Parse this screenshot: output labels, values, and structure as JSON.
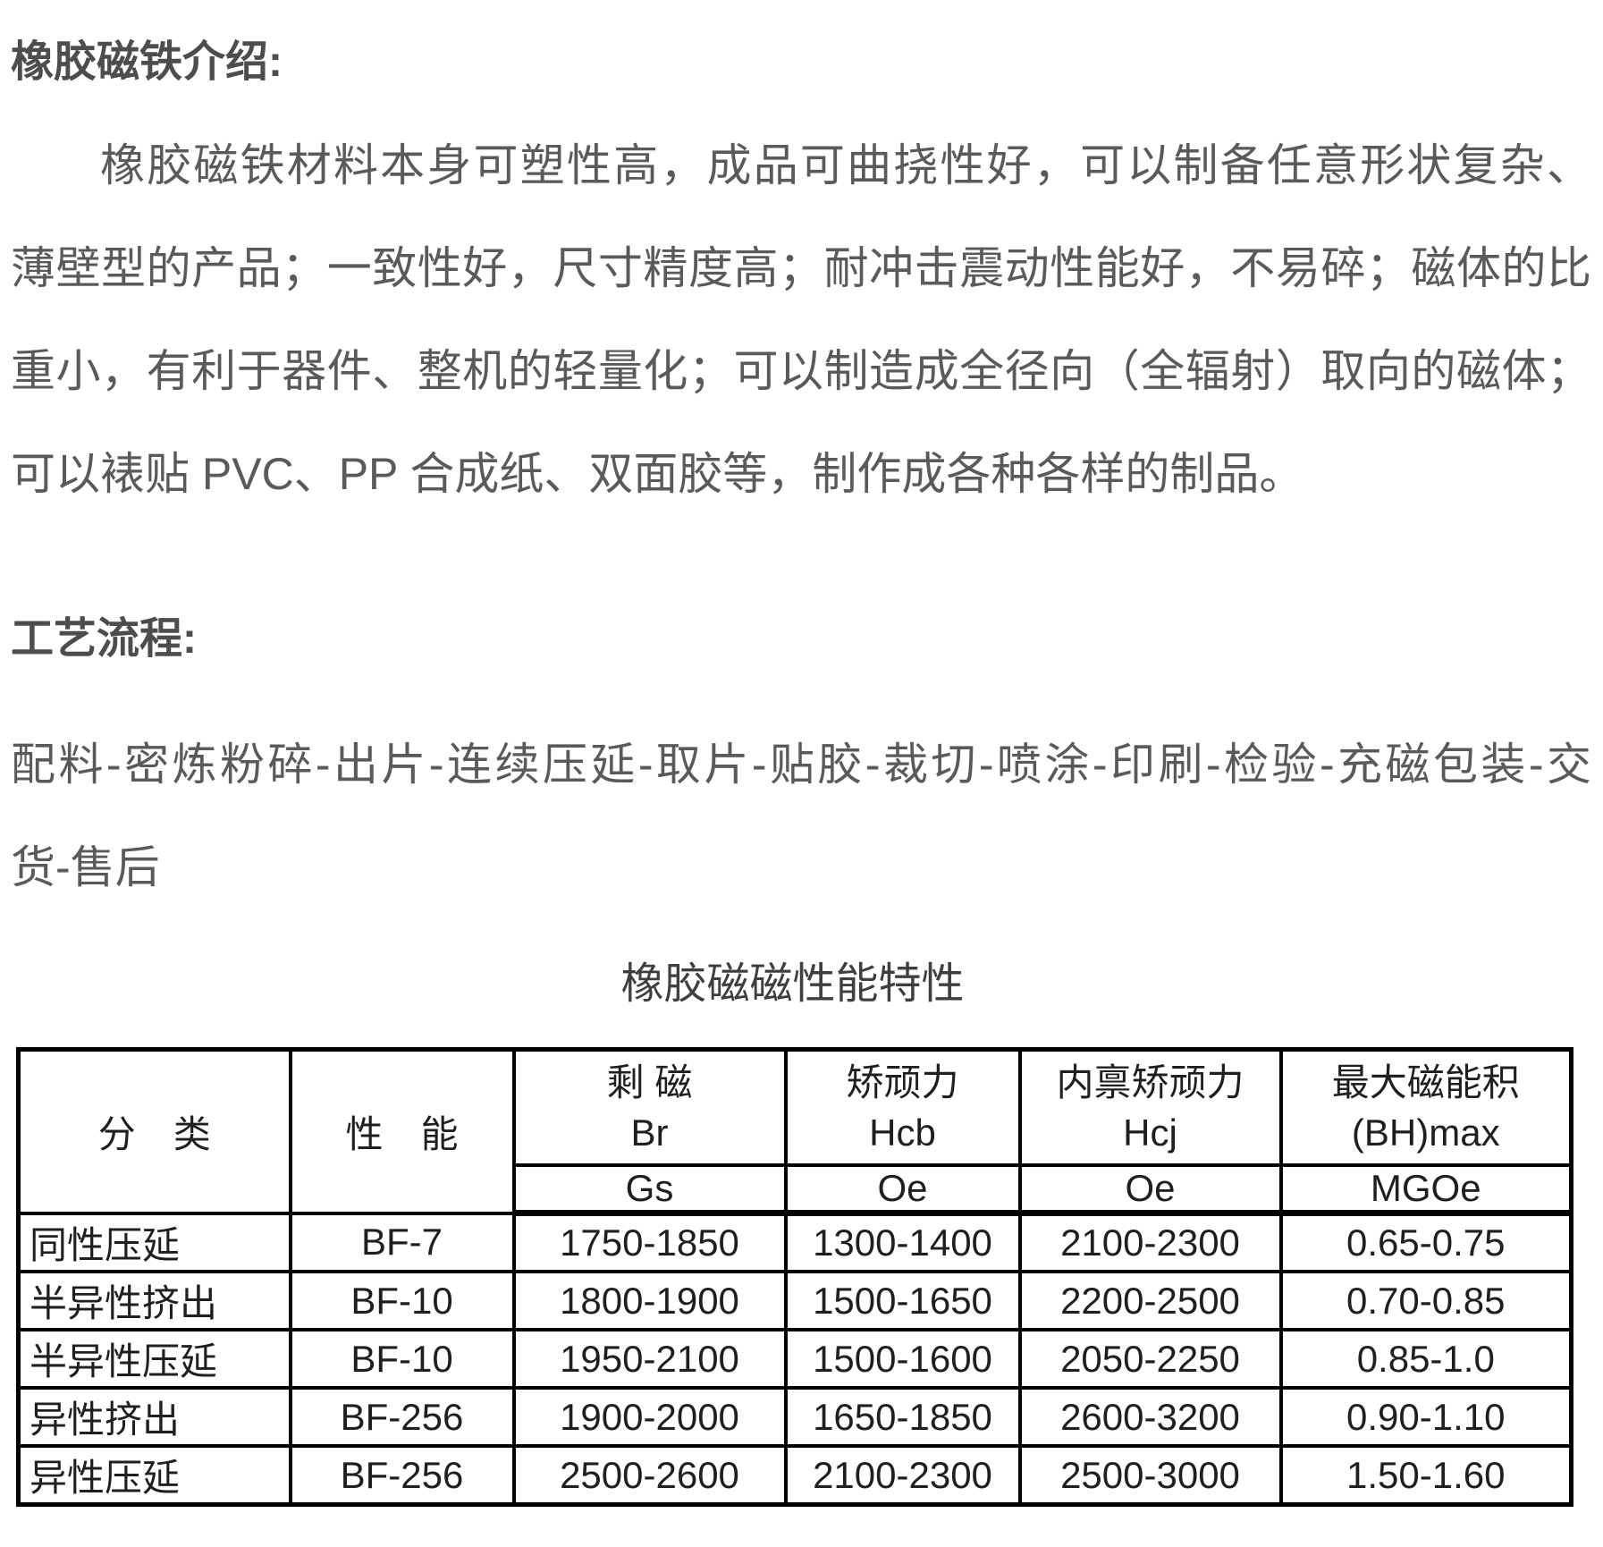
{
  "intro": {
    "heading": "橡胶磁铁介绍:",
    "lines": [
      "橡胶磁铁材料本身可塑性高，成品可曲挠性好，可以制备任意形状复杂、",
      "薄壁型的产品；一致性好，尺寸精度高；耐冲击震动性能好，不易碎；磁体的比",
      "重小，有利于器件、整机的轻量化；可以制造成全径向（全辐射）取向的磁体；",
      "可以裱贴 PVC、PP 合成纸、双面胶等，制作成各种各样的制品。"
    ]
  },
  "process": {
    "heading": "工艺流程:",
    "lines": [
      "配料-密炼粉碎-出片-连续压延-取片-贴胶-裁切-喷涂-印刷-检验-充磁包装-交",
      "货-售后"
    ]
  },
  "table": {
    "title": "橡胶磁磁性能特性",
    "headers": {
      "col1": "分　类",
      "col2": "性　能",
      "col3": {
        "name": "剩 磁",
        "symbol": "Br",
        "unit": "Gs"
      },
      "col4": {
        "name": "矫顽力",
        "symbol": "Hcb",
        "unit": "Oe"
      },
      "col5": {
        "name": "内禀矫顽力",
        "symbol": "Hcj",
        "unit": "Oe"
      },
      "col6": {
        "name": "最大磁能积",
        "symbol": "(BH)max",
        "unit": "MGOe"
      }
    },
    "rows": [
      [
        "同性压延",
        "BF-7",
        "1750-1850",
        "1300-1400",
        "2100-2300",
        "0.65-0.75"
      ],
      [
        "半异性挤出",
        "BF-10",
        "1800-1900",
        "1500-1650",
        "2200-2500",
        "0.70-0.85"
      ],
      [
        "半异性压延",
        "BF-10",
        "1950-2100",
        "1500-1600",
        "2050-2250",
        "0.85-1.0"
      ],
      [
        "异性挤出",
        "BF-256",
        "1900-2000",
        "1650-1850",
        "2600-3200",
        "0.90-1.10"
      ],
      [
        "异性压延",
        "BF-256",
        "2500-2600",
        "2100-2300",
        "2500-3000",
        "1.50-1.60"
      ]
    ]
  },
  "colors": {
    "body_text": "#5a5a5a",
    "heading_text": "#4d4d4d",
    "table_text": "#1f1f1f",
    "border": "#000000"
  }
}
